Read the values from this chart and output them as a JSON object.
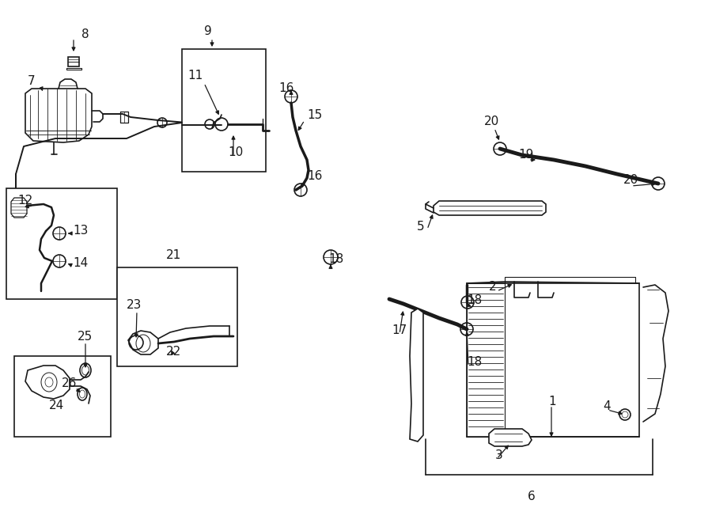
{
  "bg_color": "#ffffff",
  "line_color": "#1a1a1a",
  "lw": 1.2,
  "fig_w": 9.0,
  "fig_h": 6.61,
  "dpi": 100,
  "labels": {
    "1": [
      693,
      504,
      "1"
    ],
    "2": [
      618,
      358,
      "2"
    ],
    "3": [
      625,
      573,
      "3"
    ],
    "4": [
      762,
      510,
      "4"
    ],
    "5": [
      541,
      283,
      "5"
    ],
    "6": [
      672,
      625,
      "6"
    ],
    "7": [
      38,
      97,
      "7"
    ],
    "8": [
      108,
      38,
      "8"
    ],
    "9": [
      263,
      35,
      "9"
    ],
    "10": [
      288,
      192,
      "10"
    ],
    "11": [
      237,
      92,
      "11"
    ],
    "12": [
      25,
      250,
      "12"
    ],
    "13": [
      91,
      288,
      "13"
    ],
    "14": [
      91,
      330,
      "14"
    ],
    "15": [
      385,
      145,
      "15"
    ],
    "16a": [
      355,
      108,
      "16"
    ],
    "16b": [
      388,
      218,
      "16"
    ],
    "17": [
      497,
      415,
      "17"
    ],
    "18a": [
      589,
      375,
      "18"
    ],
    "18b": [
      589,
      455,
      "18"
    ],
    "19": [
      655,
      192,
      "19"
    ],
    "20a": [
      615,
      150,
      "20"
    ],
    "20b": [
      788,
      225,
      "20"
    ],
    "21": [
      210,
      318,
      "21"
    ],
    "22": [
      210,
      440,
      "22"
    ],
    "23": [
      162,
      382,
      "23"
    ],
    "24": [
      65,
      508,
      "24"
    ],
    "25": [
      97,
      422,
      "25"
    ],
    "26": [
      78,
      482,
      "26"
    ]
  }
}
